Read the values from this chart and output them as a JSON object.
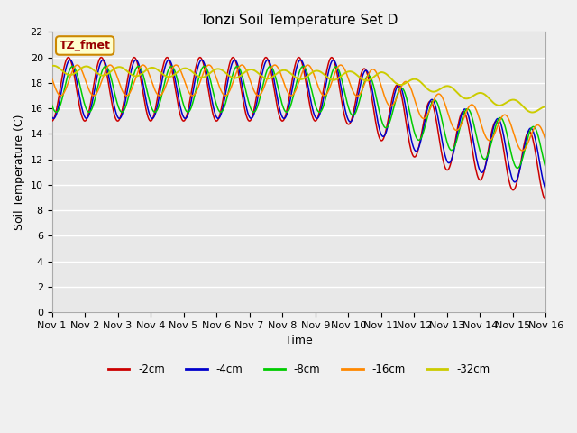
{
  "title": "Tonzi Soil Temperature Set D",
  "xlabel": "Time",
  "ylabel": "Soil Temperature (C)",
  "xlim": [
    0,
    15
  ],
  "ylim": [
    0,
    22
  ],
  "yticks": [
    0,
    2,
    4,
    6,
    8,
    10,
    12,
    14,
    16,
    18,
    20,
    22
  ],
  "xtick_labels": [
    "Nov 1",
    "Nov 2",
    "Nov 3",
    "Nov 4",
    "Nov 5",
    "Nov 6",
    "Nov 7",
    "Nov 8",
    "Nov 9",
    "Nov 10",
    "Nov 11",
    "Nov 12",
    "Nov 13",
    "Nov 14",
    "Nov 15",
    "Nov 16"
  ],
  "legend_labels": [
    "-2cm",
    "-4cm",
    "-8cm",
    "-16cm",
    "-32cm"
  ],
  "line_colors": [
    "#cc0000",
    "#0000cc",
    "#00cc00",
    "#ff8800",
    "#cccc00"
  ],
  "annotation_label": "TZ_fmet",
  "annotation_color": "#990000",
  "annotation_bg": "#ffffcc",
  "annotation_border": "#cc8800",
  "fig_bg": "#f0f0f0",
  "plot_bg": "#e8e8e8",
  "grid_color": "#ffffff",
  "title_fontsize": 11,
  "axis_fontsize": 9,
  "tick_fontsize": 8
}
